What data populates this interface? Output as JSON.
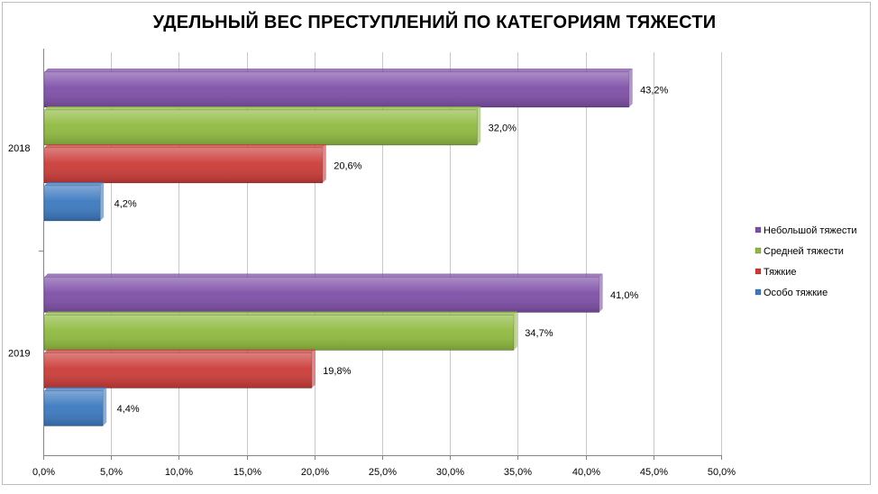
{
  "colors": {
    "Небольшой тяжести": "#7f4fa8",
    "Средней тяжести": "#8fba3f",
    "Тяжкие": "#cb3b38",
    "Особо тяжкие": "#3b79c0",
    "grid": "#c8c8c8",
    "axis": "#868686"
  },
  "chart_data": {
    "type": "bar",
    "orientation": "horizontal",
    "title": "УДЕЛЬНЫЙ ВЕС ПРЕСТУПЛЕНИЙ ПО КАТЕГОРИЯМ ТЯЖЕСТИ",
    "categories": [
      "2018",
      "2019"
    ],
    "series": [
      {
        "name": "Небольшой тяжести",
        "values": [
          43.2,
          41.0
        ],
        "labels": [
          "43,2%",
          "41,0%"
        ]
      },
      {
        "name": "Средней тяжести",
        "values": [
          32.0,
          34.7
        ],
        "labels": [
          "32,0%",
          "34,7%"
        ]
      },
      {
        "name": "Тяжкие",
        "values": [
          20.6,
          19.8
        ],
        "labels": [
          "20,6%",
          "19,8%"
        ]
      },
      {
        "name": "Особо тяжкие",
        "values": [
          4.2,
          4.4
        ],
        "labels": [
          "4,2%",
          "4,4%"
        ]
      }
    ],
    "xlim": [
      0,
      50
    ],
    "xticks": [
      0,
      5,
      10,
      15,
      20,
      25,
      30,
      35,
      40,
      45,
      50
    ],
    "xtick_labels": [
      "0,0%",
      "5,0%",
      "10,0%",
      "15,0%",
      "20,0%",
      "25,0%",
      "30,0%",
      "35,0%",
      "40,0%",
      "45,0%",
      "50,0%"
    ],
    "grid": true,
    "legend": "right",
    "legend_order": [
      "Небольшой тяжести",
      "Средней тяжести",
      "Тяжкие",
      "Особо тяжкие"
    ]
  }
}
